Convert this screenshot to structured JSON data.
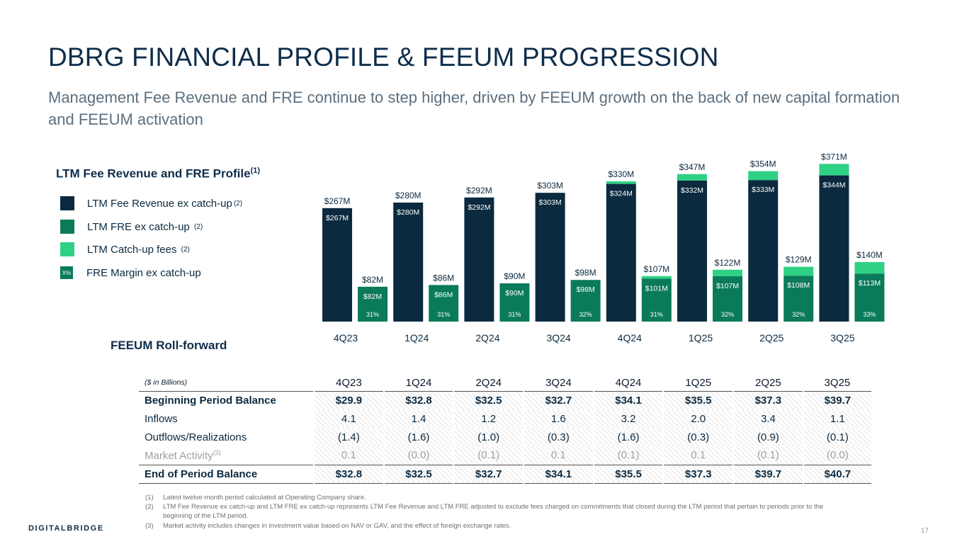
{
  "header": {
    "title": "DBRG FINANCIAL PROFILE & FEEUM PROGRESSION",
    "subtitle": "Management Fee Revenue and FRE continue to step higher, driven by FEEUM growth on the back of new capital formation and FEEUM activation"
  },
  "chart_section": {
    "title": "LTM Fee Revenue and FRE Profile",
    "title_sup": "(1)"
  },
  "legend": [
    {
      "label": "LTM Fee Revenue ex catch-up",
      "sup": "(2)",
      "color": "#0b2a3f"
    },
    {
      "label": "LTM FRE ex catch-up ",
      "sup": "(2)",
      "color": "#0a7a5b"
    },
    {
      "label": "LTM Catch-up fees ",
      "sup": "(2)",
      "color": "#2ed184"
    },
    {
      "label": "FRE Margin ex catch-up",
      "sup": "",
      "color": "#0a7a5b",
      "swatch_text": "X%"
    }
  ],
  "colors": {
    "revenue": "#0b2a3f",
    "fre": "#0a7a5b",
    "catchup": "#2ed184",
    "title": "#0e2d4a"
  },
  "chart_data": {
    "type": "bar",
    "title": "LTM Fee Revenue and FRE Profile",
    "categories": [
      "4Q23",
      "1Q24",
      "2Q24",
      "3Q24",
      "4Q24",
      "1Q25",
      "2Q25",
      "3Q25"
    ],
    "unit": "$M",
    "ylim": [
      0,
      400
    ],
    "series": [
      {
        "name": "LTM Fee Revenue ex catch-up",
        "values": [
          267,
          280,
          292,
          303,
          324,
          332,
          333,
          344
        ]
      },
      {
        "name": "LTM Fee Revenue catch-up fees",
        "values": [
          0,
          0,
          0,
          0,
          6,
          15,
          21,
          27
        ]
      },
      {
        "name": "LTM FRE ex catch-up",
        "values": [
          82,
          86,
          90,
          98,
          101,
          107,
          108,
          113
        ]
      },
      {
        "name": "LTM FRE catch-up fees",
        "values": [
          0,
          0,
          0,
          0,
          6,
          15,
          21,
          27
        ]
      }
    ],
    "revenue_total_labels": [
      "$267M",
      "$280M",
      "$292M",
      "$303M",
      "$330M",
      "$347M",
      "$354M",
      "$371M"
    ],
    "revenue_ex_labels": [
      "$267M",
      "$280M",
      "$292M",
      "$303M",
      "$324M",
      "$332M",
      "$333M",
      "$344M"
    ],
    "fre_total_labels": [
      "$82M",
      "$86M",
      "$90M",
      "$98M",
      "$107M",
      "$122M",
      "$129M",
      "$140M"
    ],
    "fre_ex_labels": [
      "$82M",
      "$86M",
      "$90M",
      "$98M",
      "$101M",
      "$107M",
      "$108M",
      "$113M"
    ],
    "margins": [
      "31%",
      "31%",
      "31%",
      "32%",
      "31%",
      "32%",
      "32%",
      "33%"
    ]
  },
  "feeum": {
    "title": "FEEUM Roll-forward",
    "unit_label": "($ in Billions)",
    "columns": [
      "4Q23",
      "1Q24",
      "2Q24",
      "3Q24",
      "4Q24",
      "1Q25",
      "2Q25",
      "3Q25"
    ],
    "rows": [
      {
        "label": "Beginning Period Balance",
        "values": [
          "$29.9",
          "$32.8",
          "$32.5",
          "$32.7",
          "$34.1",
          "$35.5",
          "$37.3",
          "$39.7"
        ]
      },
      {
        "label": "Inflows",
        "values": [
          "4.1",
          "1.4",
          "1.2",
          "1.6",
          "3.2",
          "2.0",
          "3.4",
          "1.1"
        ]
      },
      {
        "label": "Outflows/Realizations",
        "values": [
          "(1.4)",
          "(1.6)",
          "(1.0)",
          "(0.3)",
          "(1.6)",
          "(0.3)",
          "(0.9)",
          "(0.1)"
        ]
      },
      {
        "label": "Market Activity",
        "sup": "(3)",
        "values": [
          "0.1",
          "(0.0)",
          "(0.1)",
          "0.1",
          "(0.1)",
          "0.1",
          "(0.1)",
          "(0.0)"
        ]
      },
      {
        "label": "End of Period Balance",
        "values": [
          "$32.8",
          "$32.5",
          "$32.7",
          "$34.1",
          "$35.5",
          "$37.3",
          "$39.7",
          "$40.7"
        ]
      }
    ]
  },
  "footnotes": [
    {
      "num": "(1)",
      "text": "Latest twelve-month period calculated at Operating Company share."
    },
    {
      "num": "(2)",
      "text": "LTM Fee Revenue ex catch-up and LTM FRE ex catch-up represents LTM Fee Revenue and LTM FRE adjusted to exclude fees charged on commitments that closed during the LTM period that pertain to periods prior to the beginning of the LTM period."
    },
    {
      "num": "(3)",
      "text": "Market activity includes changes in investment value based on NAV or GAV, and the effect of foreign exchange rates."
    }
  ],
  "footer": {
    "logo": "DIGITALBRIDGE",
    "page": "17"
  }
}
